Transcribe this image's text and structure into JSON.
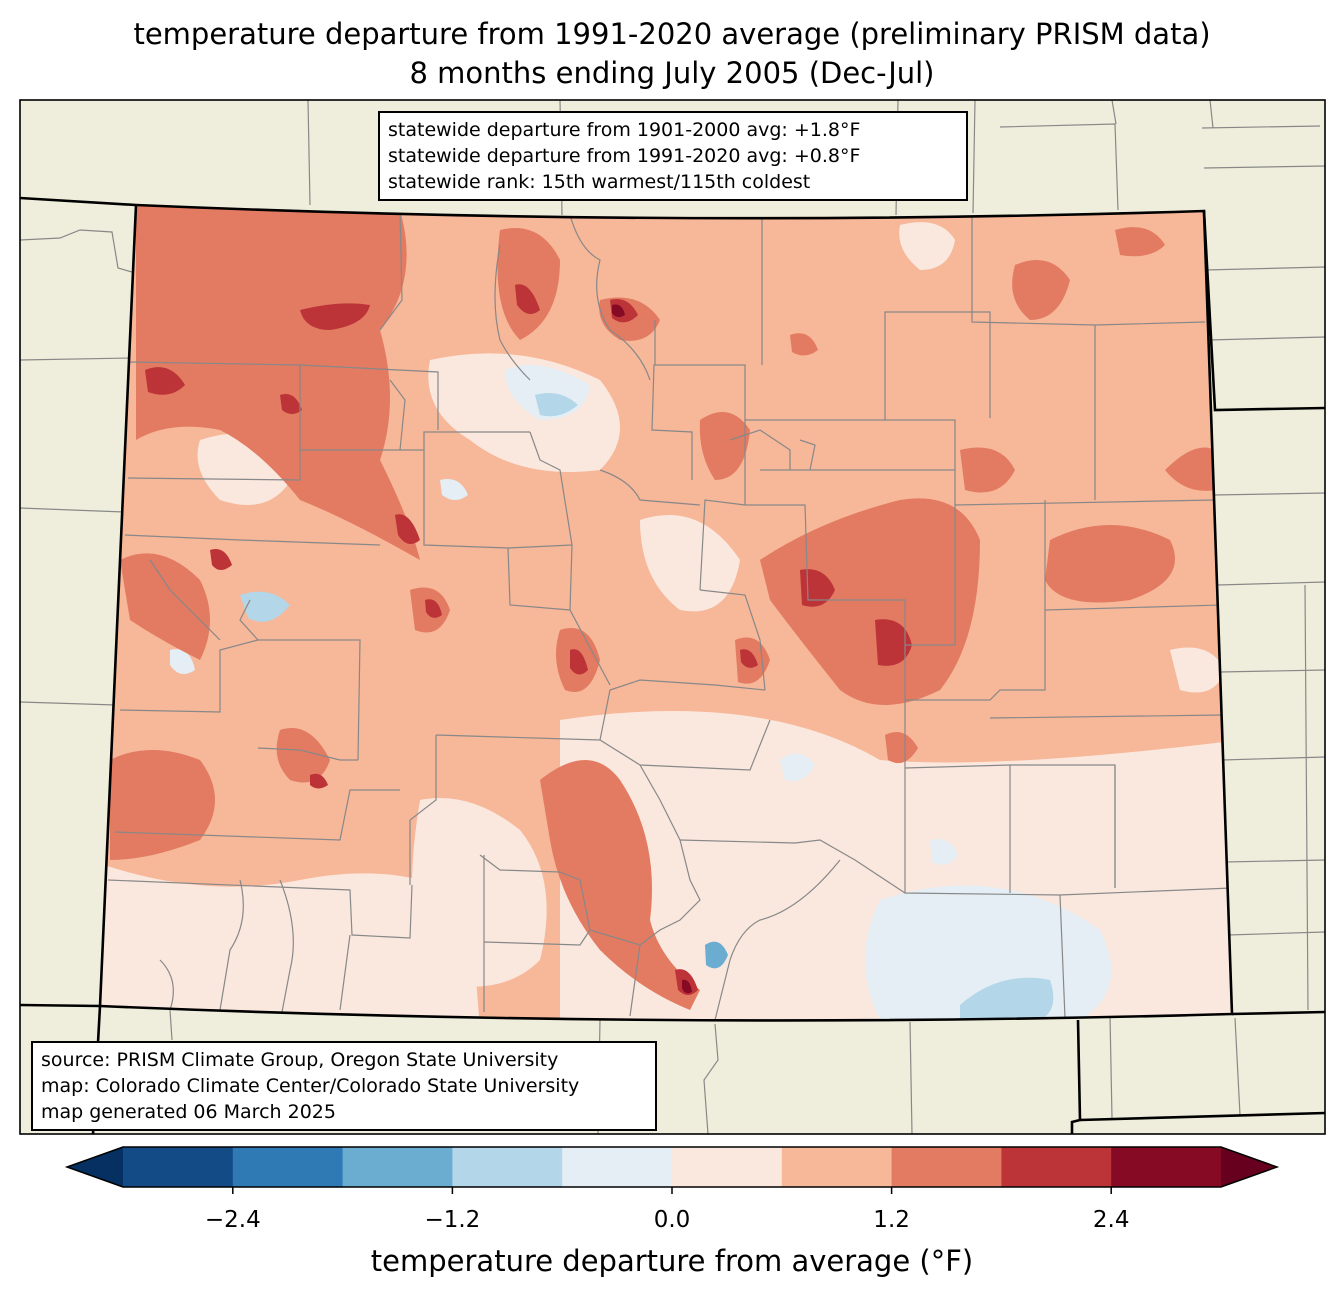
{
  "title": {
    "line1": "temperature departure from 1991-2020 average (preliminary PRISM data)",
    "line2": "8 months ending July 2005 (Dec-Jul)"
  },
  "stats_box": {
    "lines": [
      "statewide departure from 1901-2000 avg: +1.8°F",
      "statewide departure from 1991-2020 avg: +0.8°F",
      "statewide rank: 15th warmest/115th coldest"
    ]
  },
  "credits_box": {
    "lines": [
      "source: PRISM Climate Group, Oregon State University",
      "map: Colorado Climate Center/Colorado State University",
      "map generated 06 March 2025"
    ]
  },
  "colorbar": {
    "label": "temperature departure from average (°F)",
    "ticks": [
      "−2.4",
      "−1.2",
      "0.0",
      "1.2",
      "2.4"
    ],
    "tick_values": [
      -2.4,
      -1.2,
      0.0,
      1.2,
      2.4
    ],
    "bins": [
      -3.0,
      -2.4,
      -1.8,
      -1.2,
      -0.6,
      0.0,
      0.6,
      1.2,
      1.8,
      2.4,
      3.0
    ],
    "under_color": "#053061",
    "over_color": "#67001f",
    "colors": [
      "#134b87",
      "#2f79b5",
      "#6bacd1",
      "#b3d6e8",
      "#e4eef4",
      "#fae8de",
      "#f7b799",
      "#e27b62",
      "#bc3338",
      "#860a23"
    ]
  },
  "map_colors": {
    "land_outside": "#efeedc",
    "state_border": "#000000",
    "county_lines": "#888888"
  }
}
